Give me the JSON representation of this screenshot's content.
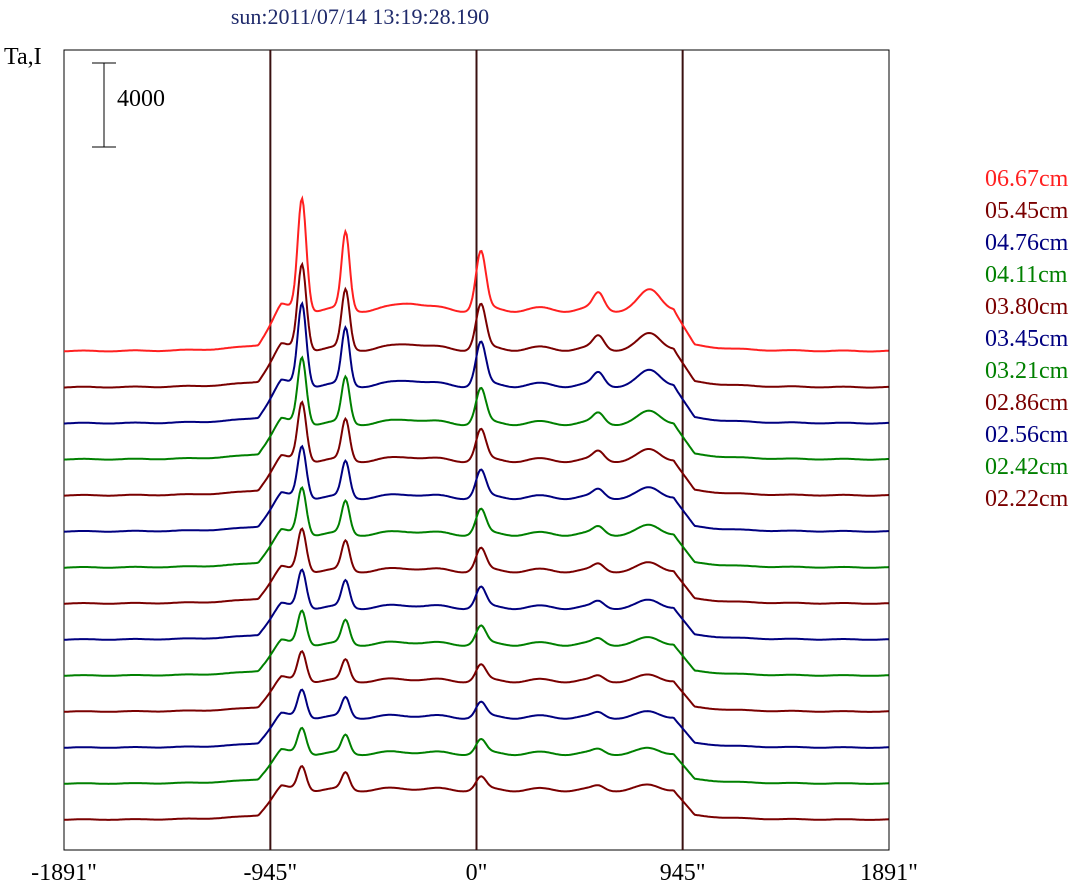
{
  "chart_data": {
    "type": "line",
    "title": "sun:2011/07/14 13:19:28.190",
    "ylabel": "Ta,I",
    "scale_bar_label": "4000",
    "x_ticks": [
      "-1891\"",
      "-945\"",
      "0\"",
      "945\"",
      "1891\""
    ],
    "x_tick_values": [
      -1891,
      -945,
      0,
      945,
      1891
    ],
    "xlim": [
      -1891,
      1891
    ],
    "vertical_lines": [
      -945,
      0,
      945
    ],
    "series": [
      {
        "name": "06.67cm",
        "color": "#ff2020",
        "offset": 100,
        "amp": 1.0
      },
      {
        "name": "05.45cm",
        "color": "#7a0000",
        "offset": 96,
        "amp": 0.82
      },
      {
        "name": "04.76cm",
        "color": "#000080",
        "offset": 92,
        "amp": 0.8
      },
      {
        "name": "04.11cm",
        "color": "#008000",
        "offset": 88,
        "amp": 0.68
      },
      {
        "name": "03.80cm",
        "color": "#7a0000",
        "offset": 84,
        "amp": 0.62
      },
      {
        "name": "03.45cm",
        "color": "#000080",
        "offset": 80,
        "amp": 0.56
      },
      {
        "name": "03.21cm",
        "color": "#008000",
        "offset": 76,
        "amp": 0.52
      },
      {
        "name": "02.86cm",
        "color": "#7a0000",
        "offset": 72,
        "amp": 0.48
      },
      {
        "name": "02.56cm",
        "color": "#000080",
        "offset": 68,
        "amp": 0.44
      },
      {
        "name": "02.42cm",
        "color": "#008000",
        "offset": 64,
        "amp": 0.4
      },
      {
        "name": "02.22cm",
        "color": "#7a0000",
        "offset": 60,
        "amp": 0.36
      }
    ],
    "extra_traces": [
      {
        "color": "#000080",
        "offset": 56,
        "amp": 0.34
      },
      {
        "color": "#008000",
        "offset": 52,
        "amp": 0.32
      },
      {
        "color": "#7a0000",
        "offset": 48,
        "amp": 0.3
      }
    ],
    "grid": false,
    "legend_position": "right"
  }
}
